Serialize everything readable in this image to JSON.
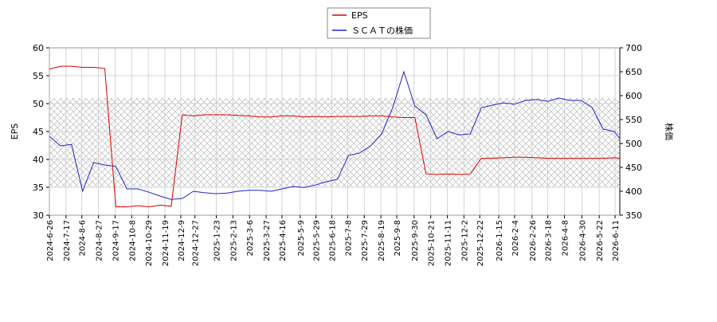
{
  "chart_data": {
    "type": "line",
    "x": [
      "2024-6-26",
      "2024-7-10",
      "2024-7-24",
      "2024-8-7",
      "2024-8-21",
      "2024-9-4",
      "2024-9-18",
      "2024-10-2",
      "2024-10-16",
      "2024-10-30",
      "2024-11-13",
      "2024-11-27",
      "2024-12-11",
      "2024-12-25",
      "2025-1-8",
      "2025-1-22",
      "2025-2-5",
      "2025-2-19",
      "2025-3-5",
      "2025-3-19",
      "2025-4-2",
      "2025-4-16",
      "2025-4-30",
      "2025-5-14",
      "2025-5-28",
      "2025-6-11",
      "2025-6-25",
      "2025-7-9",
      "2025-7-23",
      "2025-8-6",
      "2025-8-20",
      "2025-9-3",
      "2025-9-17",
      "2025-10-1",
      "2025-10-15",
      "2025-10-29",
      "2025-11-12",
      "2025-11-26",
      "2025-12-10",
      "2025-12-24",
      "2026-1-7",
      "2026-1-21",
      "2026-2-4",
      "2026-2-18",
      "2026-3-4",
      "2026-3-18",
      "2026-4-1",
      "2026-4-15",
      "2026-4-29",
      "2026-5-13",
      "2026-5-27",
      "2026-6-10",
      "2026-6-17"
    ],
    "series": [
      {
        "name": "EPS",
        "color": "#dd0000",
        "values": [
          56.2,
          56.7,
          56.7,
          56.5,
          56.5,
          56.3,
          31.5,
          31.5,
          31.7,
          31.5,
          31.8,
          31.6,
          48,
          47.8,
          48,
          48,
          48,
          47.9,
          47.8,
          47.6,
          47.6,
          47.8,
          47.8,
          47.6,
          47.7,
          47.6,
          47.7,
          47.7,
          47.7,
          47.8,
          47.8,
          47.6,
          47.5,
          47.5,
          37.4,
          37.3,
          37.4,
          37.3,
          37.4,
          40.2,
          40.2,
          40.3,
          40.4,
          40.4,
          40.3,
          40.2,
          40.2,
          40.2,
          40.2,
          40.2,
          40.2,
          40.3,
          40.2
        ]
      },
      {
        "name": "ＳＣＡＴの株価",
        "color": "#2222cc",
        "axis": "y2",
        "values": [
          515,
          495,
          498,
          400,
          460,
          455,
          452,
          405,
          405,
          398,
          390,
          383,
          385,
          400,
          397,
          395,
          396,
          400,
          402,
          402,
          400,
          405,
          410,
          408,
          413,
          420,
          425,
          475,
          480,
          495,
          520,
          575,
          650,
          578,
          560,
          510,
          525,
          518,
          520,
          575,
          580,
          585,
          582,
          590,
          592,
          588,
          595,
          590,
          590,
          575,
          530,
          525,
          510
        ]
      }
    ],
    "ylabel": "EPS",
    "y2label": "株価",
    "ylim": [
      30,
      60
    ],
    "yticks": [
      30,
      35,
      40,
      45,
      50,
      55,
      60
    ],
    "y2lim": [
      350,
      700
    ],
    "y2ticks": [
      350,
      400,
      450,
      500,
      550,
      600,
      650,
      700
    ],
    "shaded_range": [
      35,
      51
    ],
    "xticks": [
      "2024-6-26",
      "2024-7-17",
      "2024-8-6",
      "2024-8-27",
      "2024-9-17",
      "2024-10-8",
      "2024-10-29",
      "2024-11-19",
      "2024-12-9",
      "2024-12-27",
      "2025-1-23",
      "2025-2-13",
      "2025-3-6",
      "2025-3-27",
      "2025-4-16",
      "2025-5-9",
      "2025-5-29",
      "2025-6-18",
      "2025-7-8",
      "2025-7-29",
      "2025-8-19",
      "2025-9-8",
      "2025-9-30",
      "2025-10-21",
      "2025-11-11",
      "2025-12-2",
      "2025-12-22",
      "2026-1-15",
      "2026-2-4",
      "2026-2-26",
      "2026-3-18",
      "2026-4-8",
      "2026-4-30",
      "2026-5-22",
      "2026-6-11"
    ],
    "grid": true
  }
}
